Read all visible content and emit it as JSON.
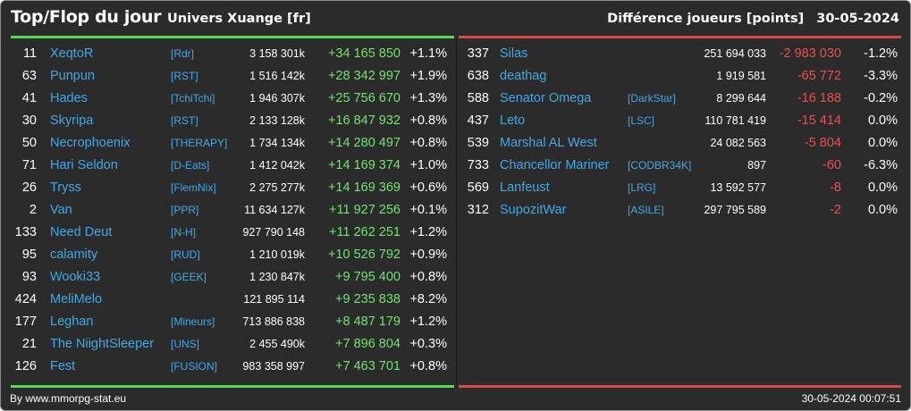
{
  "header": {
    "title": "Top/Flop du jour",
    "universe": "Univers Xuange [fr]",
    "metric": "Différence joueurs [points]",
    "date": "30-05-2024"
  },
  "colors": {
    "top_accent": "#58d858",
    "flop_accent": "#d84848",
    "name_color": "#3fa9e8",
    "background": "#2b2b2b"
  },
  "top": [
    {
      "rank": "11",
      "name": "XeqtoR",
      "guild": "[Rdr]",
      "total": "3 158 301k",
      "diff": "+34 165 850",
      "pct": "+1.1%"
    },
    {
      "rank": "63",
      "name": "Punpun",
      "guild": "[RST]",
      "total": "1 516 142k",
      "diff": "+28 342 997",
      "pct": "+1.9%"
    },
    {
      "rank": "41",
      "name": "Hades",
      "guild": "[TchiTchi]",
      "total": "1 946 307k",
      "diff": "+25 756 670",
      "pct": "+1.3%"
    },
    {
      "rank": "30",
      "name": "Skyripa",
      "guild": "[RST]",
      "total": "2 133 128k",
      "diff": "+16 847 932",
      "pct": "+0.8%"
    },
    {
      "rank": "50",
      "name": "Necrophoenix",
      "guild": "[THERAPY]",
      "total": "1 734 134k",
      "diff": "+14 280 497",
      "pct": "+0.8%"
    },
    {
      "rank": "71",
      "name": "Hari Seldon",
      "guild": "[D-Eats]",
      "total": "1 412 042k",
      "diff": "+14 169 374",
      "pct": "+1.0%"
    },
    {
      "rank": "26",
      "name": "Tryss",
      "guild": "[FlemNix]",
      "total": "2 275 277k",
      "diff": "+14 169 369",
      "pct": "+0.6%"
    },
    {
      "rank": "2",
      "name": "Van",
      "guild": "[PPR]",
      "total": "11 634 127k",
      "diff": "+11 927 256",
      "pct": "+0.1%"
    },
    {
      "rank": "133",
      "name": "Need Deut",
      "guild": "[N-H]",
      "total": "927 790 148",
      "diff": "+11 262 251",
      "pct": "+1.2%"
    },
    {
      "rank": "95",
      "name": "calamity",
      "guild": "[RUD]",
      "total": "1 210 019k",
      "diff": "+10 526 792",
      "pct": "+0.9%"
    },
    {
      "rank": "93",
      "name": "Wooki33",
      "guild": "[GEEK]",
      "total": "1 230 847k",
      "diff": "+9 795 400",
      "pct": "+0.8%"
    },
    {
      "rank": "424",
      "name": "MeliMelo",
      "guild": "",
      "total": "121 895 114",
      "diff": "+9 235 838",
      "pct": "+8.2%"
    },
    {
      "rank": "177",
      "name": "Leghan",
      "guild": "[Mineurs]",
      "total": "713 886 838",
      "diff": "+8 487 179",
      "pct": "+1.2%"
    },
    {
      "rank": "21",
      "name": "The NiightSleeper",
      "guild": "[UNS]",
      "total": "2 455 490k",
      "diff": "+7 896 804",
      "pct": "+0.3%"
    },
    {
      "rank": "126",
      "name": "Fest",
      "guild": "[FUSION]",
      "total": "983 358 997",
      "diff": "+7 463 701",
      "pct": "+0.8%"
    }
  ],
  "flop": [
    {
      "rank": "337",
      "name": "Silas",
      "guild": "",
      "total": "251 694 033",
      "diff": "-2 983 030",
      "pct": "-1.2%"
    },
    {
      "rank": "638",
      "name": "deathag",
      "guild": "",
      "total": "1 919 581",
      "diff": "-65 772",
      "pct": "-3.3%"
    },
    {
      "rank": "588",
      "name": "Senator Omega",
      "guild": "[DarkStar]",
      "total": "8 299 644",
      "diff": "-16 188",
      "pct": "-0.2%"
    },
    {
      "rank": "437",
      "name": "Leto",
      "guild": "[LSC]",
      "total": "110 781 419",
      "diff": "-15 414",
      "pct": "0.0%"
    },
    {
      "rank": "539",
      "name": "Marshal AL West",
      "guild": "",
      "total": "24 082 563",
      "diff": "-5 804",
      "pct": "0.0%"
    },
    {
      "rank": "733",
      "name": "Chancellor Mariner",
      "guild": "[CODBR34K]",
      "total": "897",
      "diff": "-60",
      "pct": "-6.3%"
    },
    {
      "rank": "569",
      "name": "Lanfeust",
      "guild": "[LRG]",
      "total": "13 592 577",
      "diff": "-8",
      "pct": "0.0%"
    },
    {
      "rank": "312",
      "name": "SupozitWar",
      "guild": "[ASILE]",
      "total": "297 795 589",
      "diff": "-2",
      "pct": "0.0%"
    }
  ],
  "footer": {
    "source": "By www.mmorpg-stat.eu",
    "timestamp": "30-05-2024 00:07:51"
  }
}
